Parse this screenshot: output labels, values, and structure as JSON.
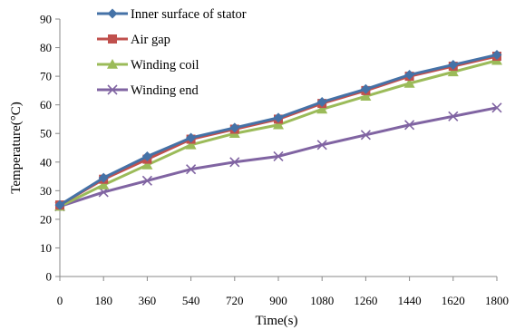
{
  "chart_data": {
    "type": "line",
    "xlabel": "Time(s)",
    "ylabel": "Temperature(°C)",
    "x": [
      0,
      180,
      360,
      540,
      720,
      900,
      1080,
      1260,
      1440,
      1620,
      1800
    ],
    "xlim": [
      0,
      1800
    ],
    "ylim": [
      0,
      90
    ],
    "yticks": [
      0,
      10,
      20,
      30,
      40,
      50,
      60,
      70,
      80,
      90
    ],
    "grid": false,
    "legend_position": "top-left",
    "series": [
      {
        "name": "Inner surface of stator",
        "color": "#4572A7",
        "marker": "diamond",
        "values": [
          25,
          34.5,
          42,
          48.5,
          52,
          55.5,
          61,
          65.5,
          70.5,
          74,
          77.5
        ]
      },
      {
        "name": "Air gap",
        "color": "#C0504D",
        "marker": "square",
        "values": [
          25,
          34,
          41,
          48,
          51.5,
          55,
          60.5,
          65,
          70,
          73.5,
          77
        ]
      },
      {
        "name": "Winding coil",
        "color": "#9BBB59",
        "marker": "triangle",
        "values": [
          24.5,
          32,
          39,
          46,
          50,
          53,
          58.5,
          63,
          67.5,
          71.5,
          75.5
        ]
      },
      {
        "name": "Winding end",
        "color": "#8064A2",
        "marker": "x",
        "values": [
          24.5,
          29.5,
          33.5,
          37.5,
          40,
          42,
          46,
          49.5,
          53,
          56,
          59
        ]
      }
    ]
  }
}
